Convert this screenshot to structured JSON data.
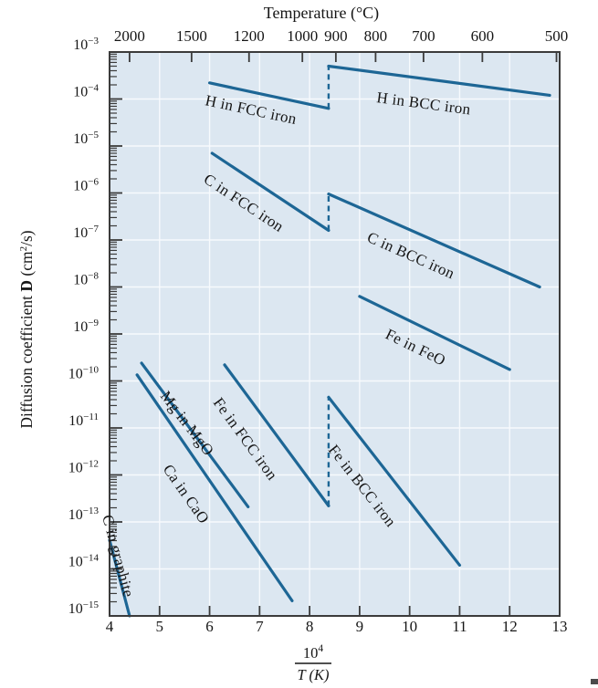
{
  "figure": {
    "top_axis_title": "Temperature (°C)",
    "y_axis_title_parts": {
      "p1": "Diffusion coefficient ",
      "bold": "D",
      "p2": " (cm",
      "sup": "2",
      "p3": "/s)"
    },
    "x_axis_label": {
      "numerator_base": "10",
      "numerator_exponent": "4",
      "denominator": "T (K)"
    }
  },
  "chart_data": {
    "type": "line",
    "log_y": true,
    "title": "",
    "top_axis": {
      "title": "Temperature (°C)",
      "tick_values_celsius": [
        2000,
        1500,
        1200,
        1000,
        900,
        800,
        700,
        600,
        500
      ]
    },
    "x_axis": {
      "label": "10^4 / T (K)",
      "range": [
        4,
        13
      ],
      "tick_values": [
        4,
        5,
        6,
        7,
        8,
        9,
        10,
        11,
        12,
        13
      ]
    },
    "y_axis": {
      "label": "Diffusion coefficient D (cm^2/s)",
      "range_exponents": [
        -3,
        -15
      ],
      "tick_exponents": [
        -3,
        -4,
        -5,
        -6,
        -7,
        -8,
        -9,
        -10,
        -11,
        -12,
        -13,
        -14,
        -15
      ]
    },
    "grid": {
      "vertical_x": [
        5,
        6,
        7,
        8,
        9,
        10,
        11,
        12
      ],
      "horizontal_exponents": [
        -4,
        -5,
        -6,
        -7,
        -8,
        -9,
        -10,
        -11,
        -12,
        -13,
        -14
      ]
    },
    "series": [
      {
        "label": "H in FCC iron",
        "x": [
          6.0,
          8.38
        ],
        "D": [
          0.00022,
          6.3e-05
        ]
      },
      {
        "label": "H in BCC iron",
        "x": [
          8.38,
          12.8
        ],
        "D": [
          0.0005,
          0.00012
        ]
      },
      {
        "label": "C in FCC iron",
        "x": [
          6.05,
          8.38
        ],
        "D": [
          7e-06,
          1.6e-07
        ]
      },
      {
        "label": "C in BCC iron",
        "x": [
          8.38,
          12.6
        ],
        "D": [
          9.5e-07,
          1e-08
        ]
      },
      {
        "label": "Fe in FeO",
        "x": [
          9.0,
          12.0
        ],
        "D": [
          6.3e-09,
          1.75e-10
        ]
      },
      {
        "label": "Fe in FCC iron",
        "x": [
          6.3,
          8.38
        ],
        "D": [
          2.2e-10,
          2.2e-13
        ]
      },
      {
        "label": "Fe in BCC iron",
        "x": [
          8.38,
          11.0
        ],
        "D": [
          4.5e-11,
          1.2e-14
        ]
      },
      {
        "label": "Mg in MgO",
        "x": [
          4.64,
          6.77
        ],
        "D": [
          2.4e-10,
          2.1e-13
        ]
      },
      {
        "label": "Ca in CaO",
        "x": [
          4.55,
          7.65
        ],
        "D": [
          1.35e-10,
          2.1e-15
        ]
      },
      {
        "label": "C in graphite",
        "x": [
          4.0,
          4.4
        ],
        "D": [
          4.1e-14,
          1e-15
        ]
      }
    ],
    "phase_transition_dashes": [
      {
        "x": 8.38,
        "D_from": 6.3e-05,
        "D_to": 0.0005
      },
      {
        "x": 8.38,
        "D_from": 1.6e-07,
        "D_to": 9.5e-07
      },
      {
        "x": 8.38,
        "D_from": 2.2e-13,
        "D_to": 4.5e-11
      }
    ]
  },
  "colors": {
    "line": "#1d6695",
    "plot_background": "#dce7f1",
    "grid": "#f7fafd",
    "axis": "#3b3b3b",
    "text": "#161616"
  }
}
